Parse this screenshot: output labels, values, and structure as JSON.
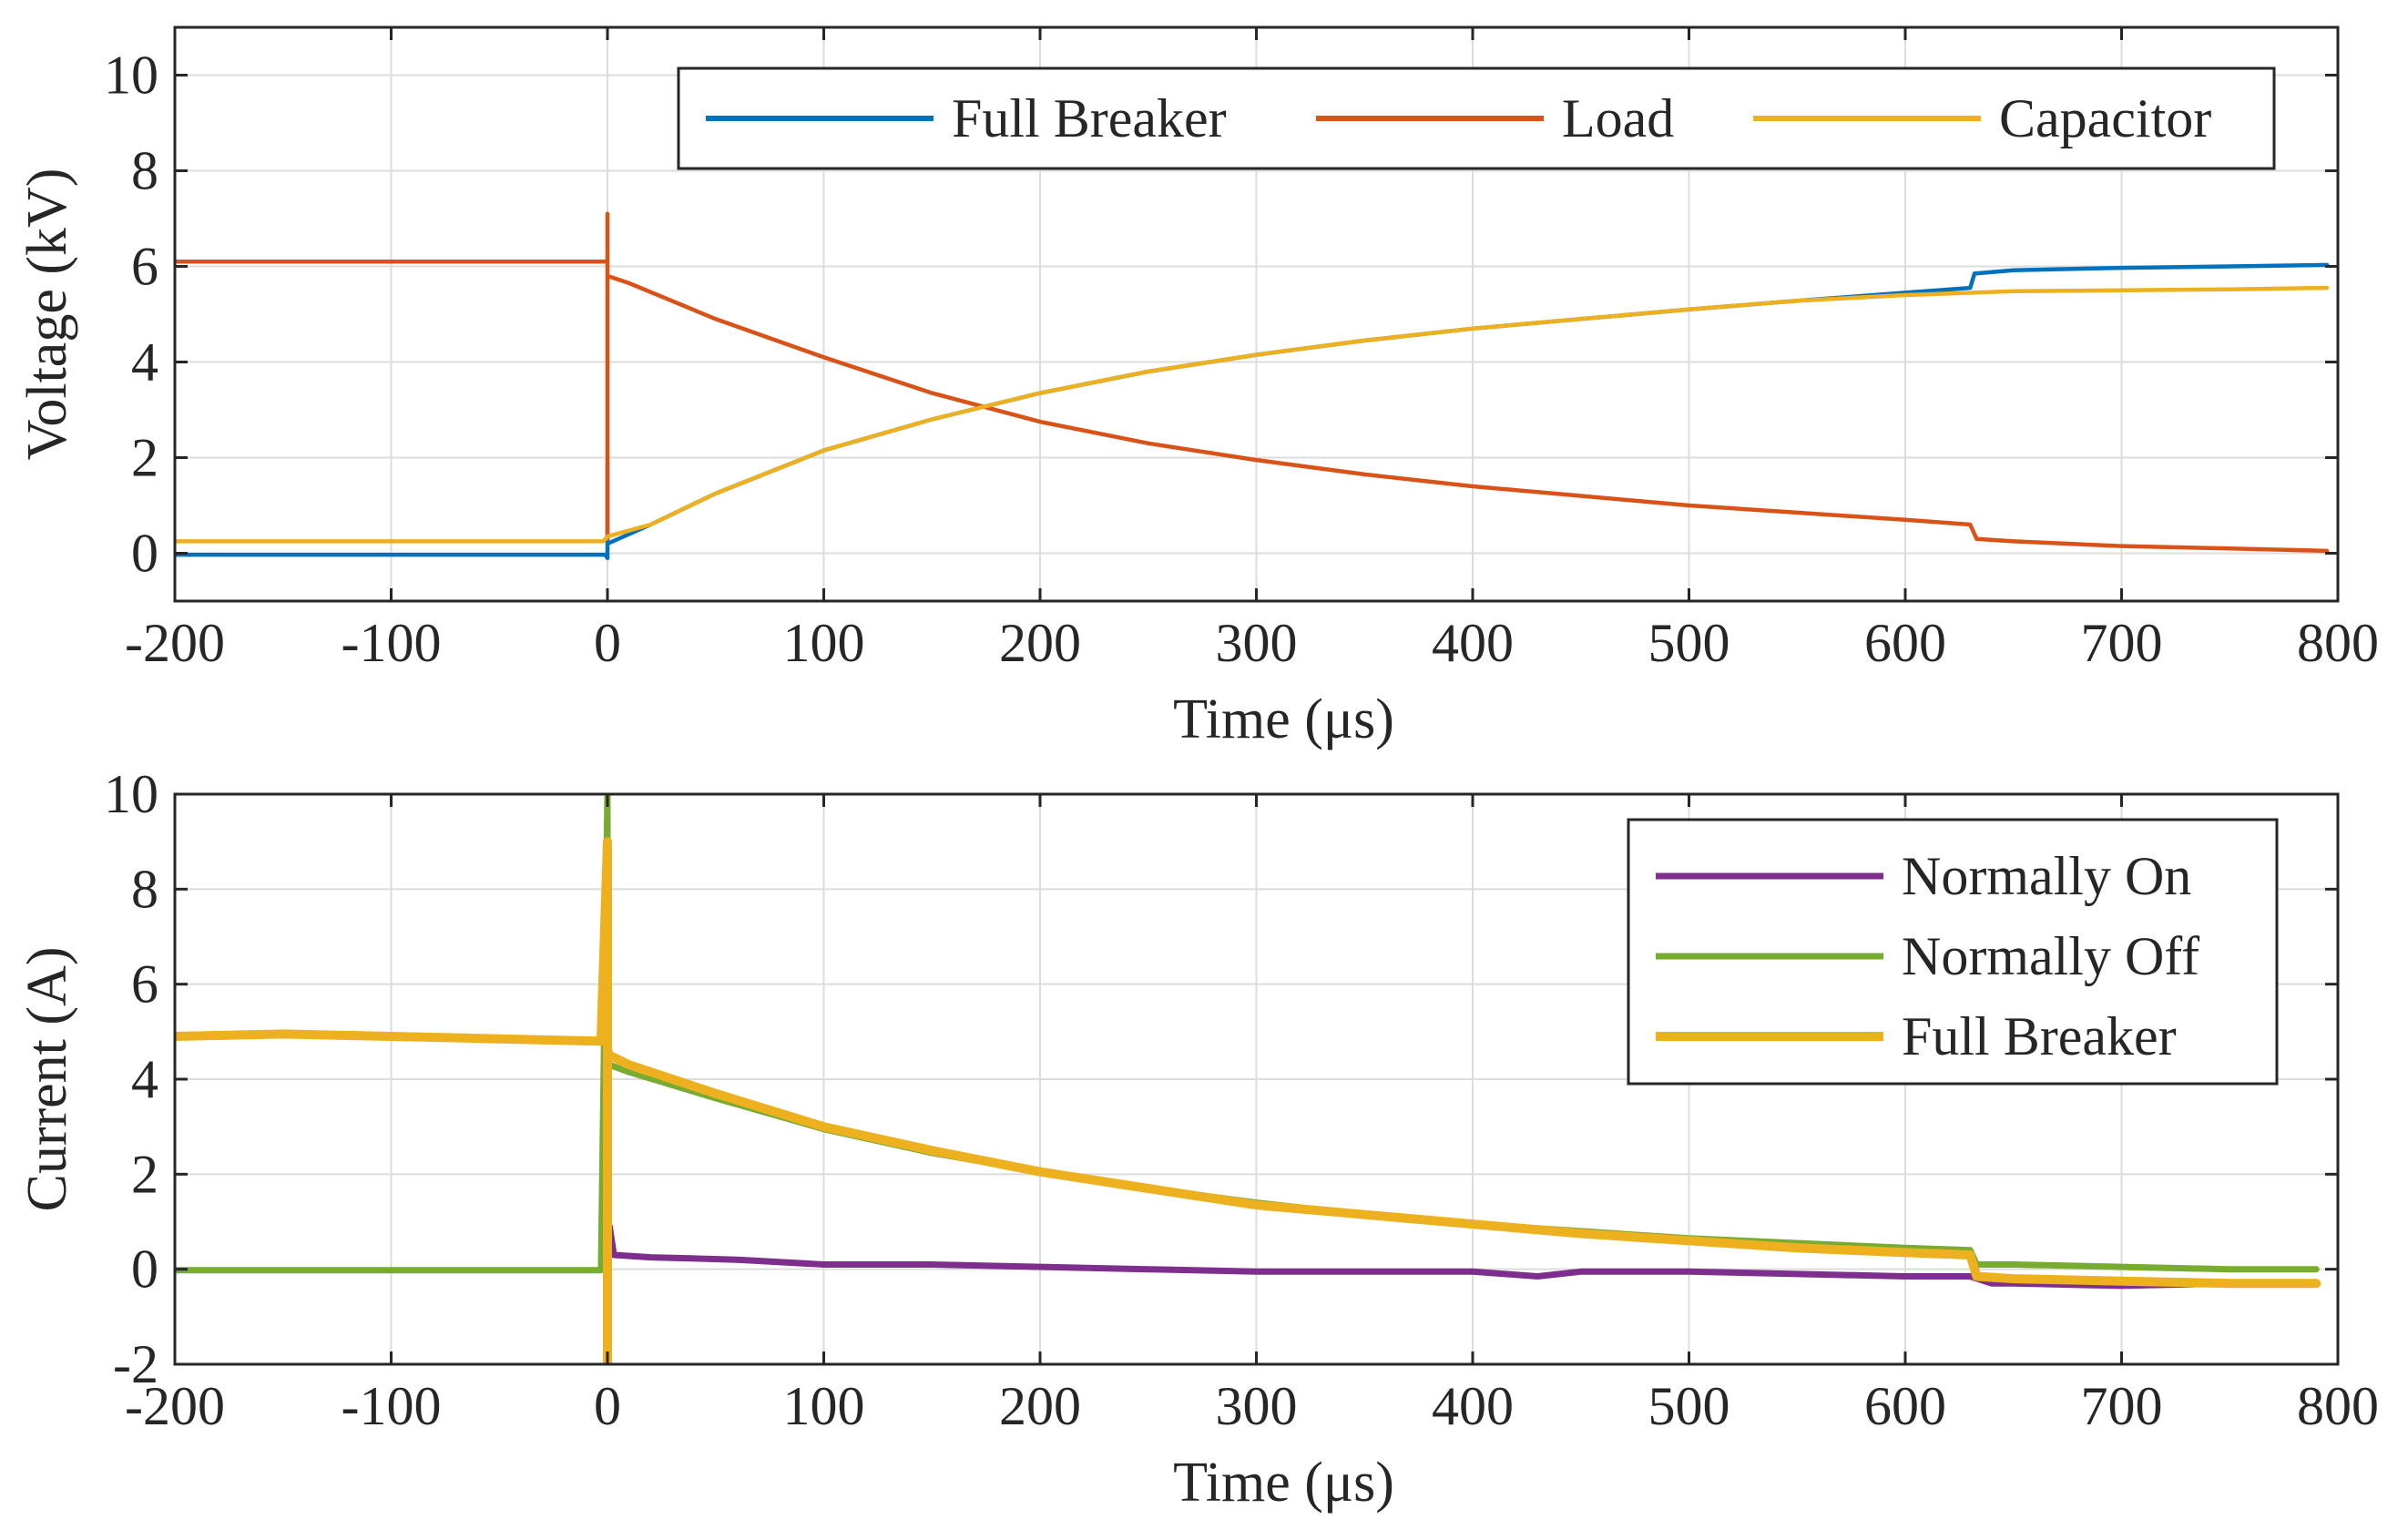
{
  "chart_data": [
    {
      "type": "line",
      "title": "",
      "xlabel": "Time (μs)",
      "ylabel": "Voltage (kV)",
      "xlim": [
        -200,
        800
      ],
      "ylim": [
        -1,
        11
      ],
      "xticks": [
        -200,
        -100,
        0,
        100,
        200,
        300,
        400,
        500,
        600,
        700,
        800
      ],
      "yticks": [
        0,
        2,
        4,
        6,
        8,
        10
      ],
      "grid": true,
      "legend": {
        "placement": "top-right",
        "orientation": "horizontal"
      },
      "series": [
        {
          "name": "Full Breaker",
          "color": "#0072BD",
          "x": [
            -200,
            -1,
            0,
            0,
            0,
            20,
            50,
            100,
            150,
            200,
            250,
            300,
            350,
            400,
            450,
            500,
            550,
            600,
            630,
            632,
            650,
            700,
            750,
            795
          ],
          "y": [
            -0.03,
            -0.03,
            -0.1,
            1.9,
            0.2,
            0.6,
            1.25,
            2.15,
            2.8,
            3.35,
            3.8,
            4.15,
            4.45,
            4.7,
            4.9,
            5.1,
            5.28,
            5.45,
            5.55,
            5.85,
            5.92,
            5.97,
            6.0,
            6.03
          ]
        },
        {
          "name": "Load",
          "color": "#D95319",
          "x": [
            -200,
            -2,
            0,
            0,
            0,
            0,
            10,
            50,
            100,
            150,
            200,
            250,
            300,
            350,
            400,
            450,
            500,
            550,
            600,
            630,
            633,
            650,
            700,
            750,
            795
          ],
          "y": [
            6.1,
            6.1,
            6.1,
            7.1,
            0.3,
            5.8,
            5.65,
            4.9,
            4.1,
            3.35,
            2.75,
            2.3,
            1.95,
            1.65,
            1.4,
            1.2,
            1.0,
            0.85,
            0.7,
            0.6,
            0.3,
            0.25,
            0.15,
            0.1,
            0.05
          ]
        },
        {
          "name": "Capacitor",
          "color": "#EDB120",
          "x": [
            -200,
            -2,
            0,
            20,
            50,
            100,
            150,
            200,
            250,
            300,
            350,
            400,
            450,
            500,
            550,
            600,
            650,
            700,
            750,
            795
          ],
          "y": [
            0.25,
            0.25,
            0.35,
            0.6,
            1.25,
            2.15,
            2.8,
            3.35,
            3.8,
            4.15,
            4.45,
            4.7,
            4.9,
            5.1,
            5.28,
            5.4,
            5.48,
            5.5,
            5.52,
            5.55
          ]
        }
      ]
    },
    {
      "type": "line",
      "title": "",
      "xlabel": "Time (μs)",
      "ylabel": "Current (A)",
      "xlim": [
        -200,
        800
      ],
      "ylim": [
        -2,
        10
      ],
      "xticks": [
        -200,
        -100,
        0,
        100,
        200,
        300,
        400,
        500,
        600,
        700,
        800
      ],
      "yticks": [
        -2,
        0,
        2,
        4,
        6,
        8,
        10
      ],
      "grid": true,
      "legend": {
        "placement": "top-right",
        "orientation": "vertical"
      },
      "series": [
        {
          "name": "Normally On",
          "color": "#7E2F8E",
          "x": [
            0,
            1,
            3,
            20,
            60,
            100,
            150,
            200,
            250,
            300,
            350,
            400,
            430,
            450,
            500,
            550,
            600,
            630,
            640,
            650,
            700,
            750,
            790
          ],
          "y": [
            0.1,
            0.9,
            0.3,
            0.25,
            0.2,
            0.1,
            0.1,
            0.05,
            0.0,
            -0.05,
            -0.05,
            -0.05,
            -0.15,
            -0.05,
            -0.05,
            -0.1,
            -0.15,
            -0.15,
            -0.3,
            -0.3,
            -0.35,
            -0.3,
            -0.3
          ]
        },
        {
          "name": "Normally Off",
          "color": "#77AC30",
          "x": [
            -200,
            -3,
            0,
            0,
            1,
            10,
            50,
            100,
            150,
            200,
            250,
            300,
            350,
            400,
            450,
            500,
            550,
            600,
            630,
            633,
            650,
            700,
            750,
            790
          ],
          "y": [
            -0.02,
            -0.02,
            10,
            4.0,
            4.3,
            4.15,
            3.6,
            2.95,
            2.45,
            2.05,
            1.7,
            1.4,
            1.15,
            0.95,
            0.8,
            0.65,
            0.55,
            0.45,
            0.4,
            0.1,
            0.1,
            0.05,
            0.0,
            0.0
          ]
        },
        {
          "name": "Full Breaker",
          "color": "#EDB120",
          "x": [
            -200,
            -150,
            -100,
            -50,
            -3,
            0,
            0,
            0,
            1,
            10,
            50,
            100,
            150,
            200,
            250,
            300,
            350,
            400,
            450,
            500,
            550,
            600,
            630,
            633,
            650,
            700,
            750,
            790
          ],
          "y": [
            4.9,
            4.95,
            4.9,
            4.85,
            4.8,
            9.0,
            -2.0,
            4.6,
            4.5,
            4.3,
            3.7,
            3.0,
            2.5,
            2.05,
            1.7,
            1.35,
            1.15,
            0.95,
            0.75,
            0.6,
            0.45,
            0.35,
            0.3,
            -0.15,
            -0.2,
            -0.25,
            -0.3,
            -0.3
          ]
        }
      ]
    }
  ]
}
